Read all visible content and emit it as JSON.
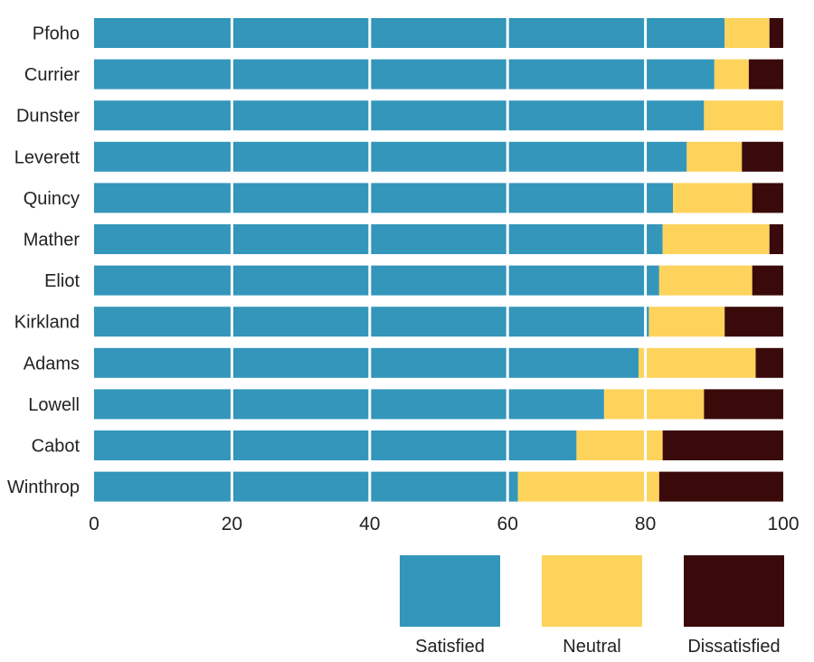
{
  "chart_data": {
    "type": "bar",
    "orientation": "horizontal",
    "stacked": true,
    "title": "",
    "xlabel": "",
    "ylabel": "",
    "xlim": [
      0,
      100
    ],
    "xticks": [
      0,
      20,
      40,
      60,
      80,
      100
    ],
    "grid": true,
    "legend_position": "bottom-right",
    "categories": [
      "Pfoho",
      "Currier",
      "Dunster",
      "Leverett",
      "Quincy",
      "Mather",
      "Eliot",
      "Kirkland",
      "Adams",
      "Lowell",
      "Cabot",
      "Winthrop"
    ],
    "series": [
      {
        "name": "Satisfied",
        "color": "#3396ba",
        "values": [
          91.5,
          90,
          88.5,
          86,
          84,
          82.5,
          82,
          80.5,
          79,
          74,
          70,
          61.5
        ]
      },
      {
        "name": "Neutral",
        "color": "#fdd35b",
        "values": [
          6.5,
          5,
          11.5,
          8,
          11.5,
          15.5,
          13.5,
          11,
          17,
          14.5,
          12.5,
          20.5
        ]
      },
      {
        "name": "Dissatisfied",
        "color": "#3a0a0b",
        "values": [
          2,
          5,
          0,
          6,
          4.5,
          2,
          4.5,
          8.5,
          4,
          11.5,
          17.5,
          18
        ]
      }
    ]
  }
}
